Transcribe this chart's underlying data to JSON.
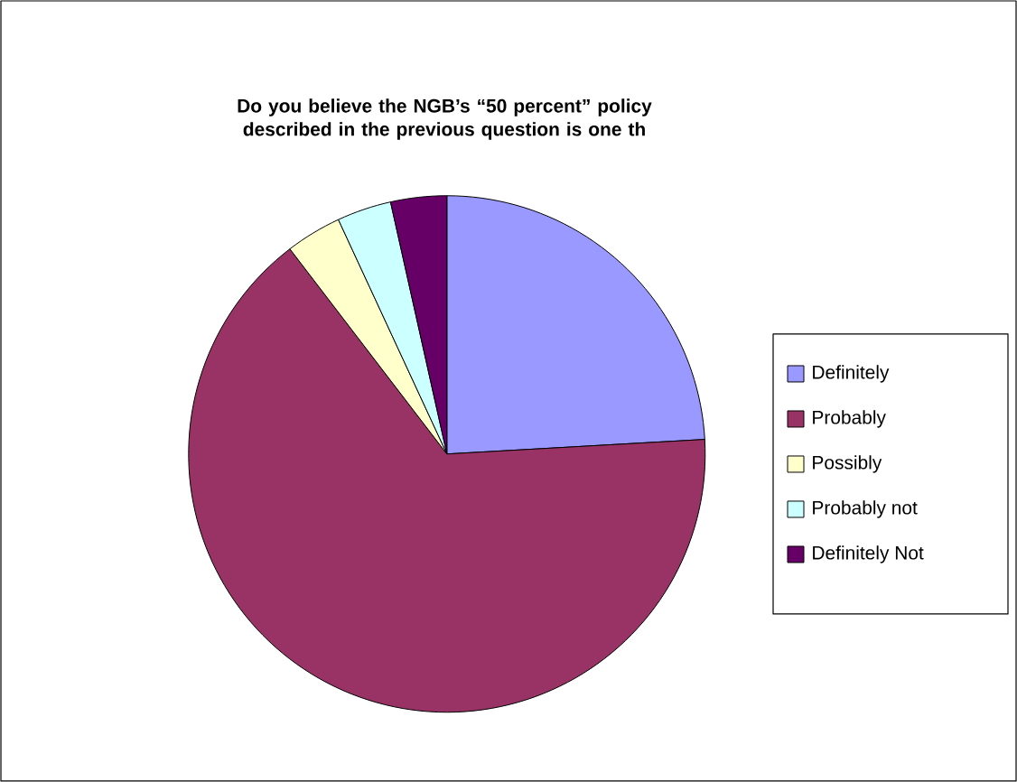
{
  "chart_data": {
    "type": "pie",
    "title": "Do you believe the NGB’s “50 percent” policy described in the previous question is one th",
    "categories": [
      "Definitely",
      "Probably",
      "Possibly",
      "Probably not",
      "Definitely Not"
    ],
    "values": [
      24.1,
      65.5,
      3.5,
      3.4,
      3.5
    ],
    "colors": [
      "#9999ff",
      "#993366",
      "#ffffcc",
      "#ccffff",
      "#660066"
    ],
    "legend": "right"
  }
}
